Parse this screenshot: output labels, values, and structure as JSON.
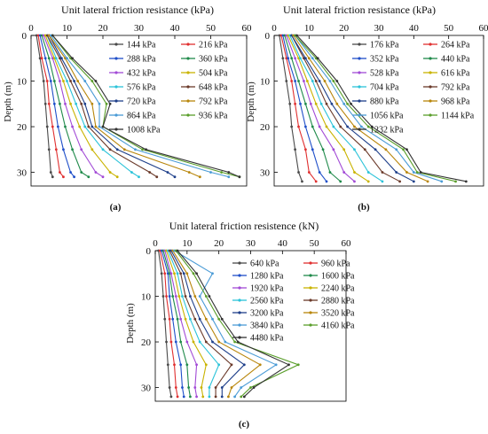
{
  "chart_data": [
    {
      "type": "line",
      "panel_label": "(a)",
      "title": "Unit lateral friction resistance (kPa)",
      "xlabel": "Unit lateral friction resistance (kPa)",
      "ylabel": "Depth (m)",
      "xlim": [
        0,
        60
      ],
      "ylim": [
        0,
        33
      ],
      "x_ticks": [
        "0",
        "10",
        "20",
        "30",
        "40",
        "50",
        "60"
      ],
      "y_ticks": [
        "0",
        "10",
        "20",
        "30"
      ],
      "legend_columns": 2,
      "legend_placement": "right",
      "series": [
        {
          "name": "144 kPa",
          "color": "#4a4a4a",
          "depth": [
            0,
            5,
            10,
            15,
            20,
            25,
            30,
            31
          ],
          "friction": [
            1.5,
            2.5,
            3.5,
            4,
            4.5,
            5,
            5.5,
            6
          ]
        },
        {
          "name": "216 kPa",
          "color": "#e03030",
          "depth": [
            0,
            5,
            10,
            15,
            20,
            25,
            30,
            31
          ],
          "friction": [
            2,
            3,
            4.5,
            5,
            6,
            7,
            8,
            9
          ]
        },
        {
          "name": "288 kPa",
          "color": "#1f4fc9",
          "depth": [
            0,
            5,
            10,
            15,
            20,
            25,
            30,
            31
          ],
          "friction": [
            2.5,
            4,
            5.5,
            6.5,
            7.5,
            9,
            11,
            12
          ]
        },
        {
          "name": "360 kPa",
          "color": "#1f8a4a",
          "depth": [
            0,
            5,
            10,
            15,
            20,
            25,
            30,
            31
          ],
          "friction": [
            3,
            5,
            6.5,
            8,
            9.5,
            11.5,
            14,
            16
          ]
        },
        {
          "name": "432 kPa",
          "color": "#a24ad6",
          "depth": [
            0,
            5,
            10,
            15,
            20,
            25,
            30,
            31
          ],
          "friction": [
            3.5,
            6,
            8,
            9.5,
            11.5,
            14,
            18,
            20
          ]
        },
        {
          "name": "504 kPa",
          "color": "#c9b300",
          "depth": [
            0,
            5,
            10,
            15,
            20,
            25,
            30,
            31
          ],
          "friction": [
            4,
            6.5,
            9,
            11,
            13.5,
            17,
            22,
            24
          ]
        },
        {
          "name": "576 kPa",
          "color": "#2bc3d9",
          "depth": [
            0,
            5,
            10,
            15,
            20,
            25,
            30,
            31
          ],
          "friction": [
            4.5,
            7,
            10,
            12.5,
            15,
            20,
            28,
            30
          ]
        },
        {
          "name": "648 kPa",
          "color": "#6b3a2a",
          "depth": [
            0,
            5,
            10,
            15,
            20,
            25,
            30,
            31
          ],
          "friction": [
            4.5,
            8,
            11,
            14,
            16,
            22,
            33,
            35
          ]
        },
        {
          "name": "720 kPa",
          "color": "#1e3f8a",
          "depth": [
            0,
            5,
            10,
            15,
            20,
            25,
            30,
            31
          ],
          "friction": [
            5,
            8.5,
            12,
            15,
            17,
            24,
            38,
            40
          ]
        },
        {
          "name": "792 kPa",
          "color": "#b8860b",
          "depth": [
            0,
            5,
            10,
            15,
            20,
            25,
            30,
            31
          ],
          "friction": [
            5,
            9.5,
            13,
            17,
            18,
            26,
            44,
            47
          ]
        },
        {
          "name": "864 kPa",
          "color": "#4a9bd6",
          "depth": [
            0,
            5,
            10,
            15,
            20,
            25,
            30,
            31
          ],
          "friction": [
            5.5,
            10,
            15,
            19,
            19,
            29,
            50,
            55
          ]
        },
        {
          "name": "936 kPa",
          "color": "#5a9e2b",
          "depth": [
            0,
            5,
            10,
            15,
            20,
            25,
            30,
            31
          ],
          "friction": [
            6,
            11,
            17,
            21,
            20,
            31,
            53,
            58
          ]
        },
        {
          "name": "1008 kPa",
          "color": "#333333",
          "depth": [
            0,
            5,
            10,
            15,
            20,
            25,
            30,
            31
          ],
          "friction": [
            6,
            11.5,
            18,
            22,
            20,
            32,
            55,
            58
          ]
        }
      ]
    },
    {
      "type": "line",
      "panel_label": "(b)",
      "title": "Unit lateral friction resistance (kPa)",
      "xlabel": "Unit lateral friction resistance (kPa)",
      "ylabel": "Depth (m)",
      "xlim": [
        0,
        60
      ],
      "ylim": [
        0,
        33
      ],
      "x_ticks": [
        "0",
        "10",
        "20",
        "30",
        "40",
        "50",
        "60"
      ],
      "y_ticks": [
        "0",
        "10",
        "20",
        "30"
      ],
      "legend_columns": 2,
      "legend_placement": "right",
      "series": [
        {
          "name": "176 kPa",
          "color": "#4a4a4a",
          "depth": [
            0,
            5,
            10,
            15,
            20,
            25,
            30,
            32
          ],
          "friction": [
            1.5,
            2.5,
            3.5,
            4.5,
            5,
            6,
            7,
            8
          ]
        },
        {
          "name": "264 kPa",
          "color": "#e03030",
          "depth": [
            0,
            5,
            10,
            15,
            20,
            25,
            30,
            32
          ],
          "friction": [
            2,
            3.5,
            5,
            6,
            7,
            9,
            10,
            12
          ]
        },
        {
          "name": "352 kPa",
          "color": "#1f4fc9",
          "depth": [
            0,
            5,
            10,
            15,
            20,
            25,
            30,
            32
          ],
          "friction": [
            2.5,
            4,
            6,
            7.5,
            9,
            11,
            13,
            15
          ]
        },
        {
          "name": "440 kPa",
          "color": "#1f8a4a",
          "depth": [
            0,
            5,
            10,
            15,
            20,
            25,
            30,
            32
          ],
          "friction": [
            3,
            5,
            7,
            9,
            11,
            14,
            16,
            19
          ]
        },
        {
          "name": "528 kPa",
          "color": "#a24ad6",
          "depth": [
            0,
            5,
            10,
            15,
            20,
            25,
            30,
            32
          ],
          "friction": [
            3.5,
            6,
            8.5,
            10.5,
            13,
            17,
            20,
            23
          ]
        },
        {
          "name": "616 kPa",
          "color": "#c9b300",
          "depth": [
            0,
            5,
            10,
            15,
            20,
            25,
            30,
            32
          ],
          "friction": [
            4,
            7,
            9.5,
            12,
            15,
            20,
            23,
            27
          ]
        },
        {
          "name": "704 kPa",
          "color": "#2bc3d9",
          "depth": [
            0,
            5,
            10,
            15,
            20,
            25,
            30,
            32
          ],
          "friction": [
            4.5,
            7.5,
            11,
            13.5,
            17,
            23,
            27,
            31
          ]
        },
        {
          "name": "792 kPa",
          "color": "#6b3a2a",
          "depth": [
            0,
            5,
            10,
            15,
            20,
            25,
            30,
            32
          ],
          "friction": [
            5,
            8.5,
            12,
            15,
            19,
            26,
            31,
            36
          ]
        },
        {
          "name": "880 kPa",
          "color": "#1e3f8a",
          "depth": [
            0,
            5,
            10,
            15,
            20,
            25,
            30,
            32
          ],
          "friction": [
            5,
            9,
            13,
            16.5,
            21,
            29,
            35,
            40
          ]
        },
        {
          "name": "968 kPa",
          "color": "#b8860b",
          "depth": [
            0,
            5,
            10,
            15,
            20,
            25,
            30,
            32
          ],
          "friction": [
            5.5,
            10,
            14.5,
            18,
            23,
            32,
            38,
            44
          ]
        },
        {
          "name": "1056 kPa",
          "color": "#4a9bd6",
          "depth": [
            0,
            5,
            10,
            15,
            20,
            25,
            30,
            32
          ],
          "friction": [
            6,
            11,
            16,
            20,
            25,
            35,
            40,
            48
          ]
        },
        {
          "name": "1144 kPa",
          "color": "#5a9e2b",
          "depth": [
            0,
            5,
            10,
            15,
            20,
            25,
            30,
            32
          ],
          "friction": [
            6,
            12,
            17,
            21,
            27,
            37,
            41,
            52
          ]
        },
        {
          "name": "1232 kPa",
          "color": "#333333",
          "depth": [
            0,
            5,
            10,
            15,
            20,
            25,
            30,
            32
          ],
          "friction": [
            6.5,
            12.5,
            18,
            22,
            28,
            38,
            42,
            55
          ]
        }
      ]
    },
    {
      "type": "line",
      "panel_label": "(c)",
      "title": "Unit lateral friction resistence (kN)",
      "xlabel": "Unit lateral friction resistence (kN)",
      "ylabel": "Depth (m)",
      "xlim": [
        0,
        60
      ],
      "ylim": [
        0,
        33
      ],
      "x_ticks": [
        "0",
        "10",
        "20",
        "30",
        "40",
        "50",
        "60"
      ],
      "y_ticks": [
        "0",
        "10",
        "20",
        "30"
      ],
      "legend_columns": 2,
      "legend_placement": "right",
      "series": [
        {
          "name": "640 kPa",
          "color": "#4a4a4a",
          "depth": [
            0,
            5,
            10,
            15,
            20,
            25,
            30,
            32
          ],
          "friction": [
            1,
            2,
            2.5,
            3,
            3.5,
            4,
            4.5,
            5
          ]
        },
        {
          "name": "960 kPa",
          "color": "#e03030",
          "depth": [
            0,
            5,
            10,
            15,
            20,
            25,
            30,
            32
          ],
          "friction": [
            1.5,
            3,
            3.5,
            4.5,
            5,
            6,
            6.5,
            7
          ]
        },
        {
          "name": "1280 kPa",
          "color": "#1f4fc9",
          "depth": [
            0,
            5,
            10,
            15,
            20,
            25,
            30,
            32
          ],
          "friction": [
            2,
            4,
            4.5,
            5.5,
            6.5,
            8,
            8.5,
            9
          ]
        },
        {
          "name": "1600 kPa",
          "color": "#1f8a4a",
          "depth": [
            0,
            5,
            10,
            15,
            20,
            25,
            30,
            32
          ],
          "friction": [
            2.5,
            4.5,
            5.5,
            7,
            8,
            10,
            10.5,
            11
          ]
        },
        {
          "name": "1920 kPa",
          "color": "#a24ad6",
          "depth": [
            0,
            5,
            10,
            15,
            20,
            25,
            30,
            32
          ],
          "friction": [
            3,
            5,
            6.5,
            8,
            10,
            13,
            12.5,
            13
          ]
        },
        {
          "name": "2240 kPa",
          "color": "#c9b300",
          "depth": [
            0,
            5,
            10,
            15,
            20,
            25,
            30,
            32
          ],
          "friction": [
            3.5,
            6,
            7.5,
            9.5,
            12,
            16,
            14.5,
            15
          ]
        },
        {
          "name": "2560 kPa",
          "color": "#2bc3d9",
          "depth": [
            0,
            5,
            10,
            15,
            20,
            25,
            30,
            32
          ],
          "friction": [
            4,
            7,
            8.5,
            11,
            14,
            20,
            17,
            17
          ]
        },
        {
          "name": "2880 kPa",
          "color": "#6b3a2a",
          "depth": [
            0,
            5,
            10,
            15,
            20,
            25,
            30,
            32
          ],
          "friction": [
            4.5,
            8,
            9.5,
            12.5,
            16,
            24,
            19,
            19
          ]
        },
        {
          "name": "3200 kPa",
          "color": "#1e3f8a",
          "depth": [
            0,
            5,
            10,
            15,
            20,
            25,
            30,
            32
          ],
          "friction": [
            5,
            9,
            11,
            14,
            18,
            28,
            21,
            21
          ]
        },
        {
          "name": "3520 kPa",
          "color": "#b8860b",
          "depth": [
            0,
            5,
            10,
            15,
            20,
            25,
            30,
            32
          ],
          "friction": [
            5.5,
            10,
            12.5,
            16,
            20,
            33,
            24,
            23
          ]
        },
        {
          "name": "3840 kPa",
          "color": "#4a9bd6",
          "depth": [
            0,
            5,
            10,
            15,
            20,
            25,
            30,
            32
          ],
          "friction": [
            6,
            18,
            14,
            18,
            22,
            38,
            27,
            25
          ]
        },
        {
          "name": "4160 kPa",
          "color": "#5a9e2b",
          "depth": [
            0,
            5,
            10,
            15,
            20,
            25,
            30,
            32
          ],
          "friction": [
            6.5,
            12,
            16,
            20,
            25,
            45,
            30,
            27
          ]
        },
        {
          "name": "4480 kPa",
          "color": "#333333",
          "depth": [
            0,
            5,
            10,
            15,
            20,
            25,
            30,
            32
          ],
          "friction": [
            7,
            13,
            17,
            21,
            26,
            42,
            31,
            28
          ]
        }
      ]
    }
  ]
}
